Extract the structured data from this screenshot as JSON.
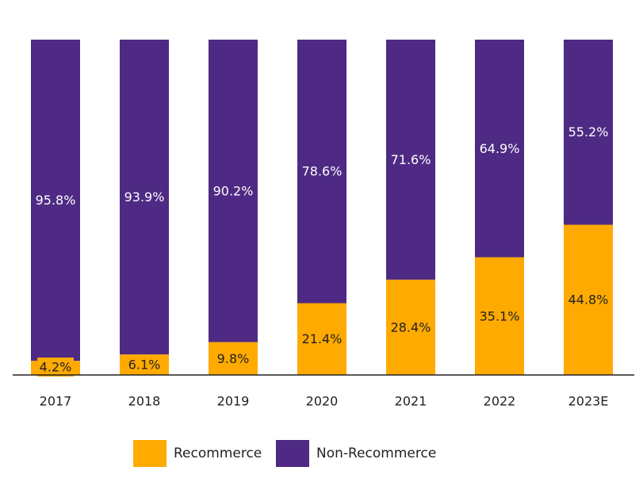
{
  "chart_data": {
    "type": "bar",
    "stacked": true,
    "categories": [
      "2017",
      "2018",
      "2019",
      "2020",
      "2021",
      "2022",
      "2023E"
    ],
    "series": [
      {
        "name": "Recommerce",
        "values": [
          4.2,
          6.1,
          9.8,
          21.4,
          28.4,
          35.1,
          44.8
        ],
        "labels": [
          "4.2%",
          "6.1%",
          "9.8%",
          "21.4%",
          "28.4%",
          "35.1%",
          "44.8%"
        ],
        "color": "#FFAA00",
        "label_color": "#222222"
      },
      {
        "name": "Non-Recommerce",
        "values": [
          95.8,
          93.9,
          90.2,
          78.6,
          71.6,
          64.9,
          55.2
        ],
        "labels": [
          "95.8%",
          "93.9%",
          "90.2%",
          "78.6%",
          "71.6%",
          "64.9%",
          "55.2%"
        ],
        "color": "#4E2A84",
        "label_color": "#FFFFFF"
      }
    ],
    "title": "",
    "xlabel": "",
    "ylabel": "",
    "ylim": [
      0,
      100
    ],
    "grid": false,
    "legend_position": "bottom-center",
    "legend": {
      "recommerce_label": "Recommerce",
      "non_recommerce_label": "Non-Recommerce"
    }
  }
}
